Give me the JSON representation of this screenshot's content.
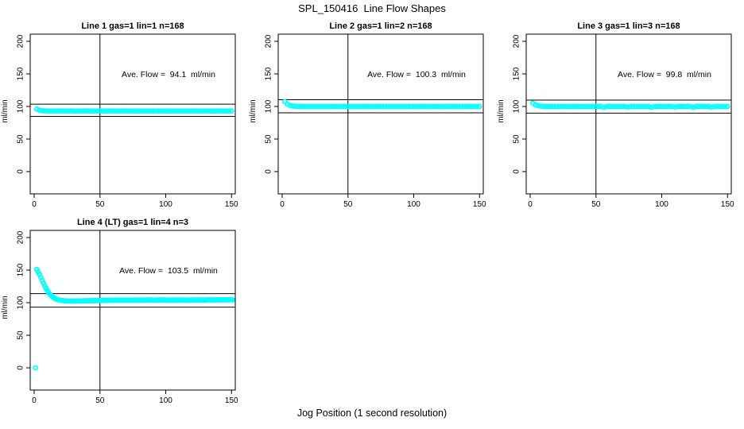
{
  "figure": {
    "background": "#FFFFFF",
    "axis_color": "#000000",
    "marker_color": "#00FFFF"
  },
  "chart_data": {
    "type": "scatter",
    "title": "SPL_150416  Line Flow Shapes",
    "xlabel": "Jog Position (1 second resolution)",
    "ylabel": "ml/min",
    "marker": "open-circle",
    "marker_color": "#00FFFF",
    "xlim": [
      0,
      155
    ],
    "ylim": [
      0,
      200
    ],
    "x_ticks": [
      0,
      50,
      100,
      150
    ],
    "y_ticks": [
      0,
      50,
      100,
      150,
      200
    ],
    "vline_x": 50,
    "grid": false,
    "panels": [
      {
        "title": "Line 1 gas=1 lin=1 n=168",
        "n": 168,
        "ave_flow": 94.1,
        "ave_flow_label": "Ave. Flow =  94.1  ml/min",
        "ref_lines": [
          103.5,
          84.7
        ],
        "series": {
          "x_start": 2,
          "x_step": 2,
          "y": [
            96,
            94.2,
            93.5,
            93.2,
            93,
            93,
            92.9,
            93,
            93.1,
            93,
            92.9,
            93,
            93,
            93.1,
            93,
            92.9,
            93,
            93,
            93.1,
            93,
            93,
            92.9,
            93,
            93,
            93.1,
            93,
            92.9,
            93,
            93,
            93.1,
            93,
            92.9,
            93,
            93,
            93.1,
            93,
            93,
            92.9,
            93,
            93.1,
            93,
            92.9,
            93,
            93,
            93.1,
            93,
            92.9,
            93,
            93,
            93.1,
            93,
            93,
            92.9,
            93,
            93.1,
            93,
            92.9,
            93,
            93,
            93.1,
            93,
            92.9,
            93,
            93,
            93.1,
            93,
            93,
            92.9,
            93,
            93.1,
            93,
            92.9,
            93,
            93,
            93.1
          ]
        }
      },
      {
        "title": "Line 2 gas=1 lin=2 n=168",
        "n": 168,
        "ave_flow": 100.3,
        "ave_flow_label": "Ave. Flow =  100.3  ml/min",
        "ref_lines": [
          110.3,
          90.3
        ],
        "series": {
          "x_start": 2,
          "x_step": 2,
          "y": [
            107.5,
            103.5,
            101.5,
            100.7,
            100.3,
            100.1,
            100,
            100,
            99.9,
            100,
            100.1,
            100,
            99.9,
            100,
            100,
            100.1,
            100,
            99.9,
            100,
            100,
            100.1,
            100,
            100,
            99.9,
            100,
            100,
            100.1,
            100,
            99.9,
            100,
            100,
            100.1,
            100,
            99.9,
            100,
            100,
            100,
            100.1,
            100,
            99.9,
            100,
            100,
            100.1,
            100,
            99.9,
            100,
            100,
            100.1,
            100,
            100,
            99.9,
            100,
            100,
            100.1,
            100,
            99.9,
            100,
            100,
            100.1,
            100,
            99.9,
            100,
            100,
            100.1,
            100,
            100,
            99.9,
            100,
            100,
            100.1,
            100,
            99.9,
            100,
            100,
            100
          ]
        }
      },
      {
        "title": "Line 3 gas=1 lin=3 n=168",
        "n": 168,
        "ave_flow": 99.8,
        "ave_flow_label": "Ave. Flow =  99.8  ml/min",
        "ref_lines": [
          109.8,
          89.8
        ],
        "series": {
          "x_start": 2,
          "x_step": 2,
          "y": [
            105,
            102.5,
            101.2,
            100.5,
            100.2,
            100.1,
            100,
            100,
            99.9,
            100,
            100,
            100.1,
            100,
            99.9,
            100,
            100,
            100.1,
            100,
            100,
            99.9,
            100,
            100,
            100.1,
            100,
            99.9,
            100,
            100,
            98.7,
            100,
            100.1,
            100,
            99.9,
            100,
            100,
            100.1,
            100,
            98.9,
            100,
            100.1,
            100,
            99.9,
            100,
            100,
            100.1,
            100,
            98.8,
            100,
            100.1,
            100,
            99.9,
            100,
            100,
            100.1,
            100,
            98.9,
            100,
            100.1,
            100,
            99.9,
            100,
            100,
            98.8,
            100,
            100.1,
            100,
            100,
            99.9,
            100,
            98.9,
            100,
            100.1,
            100,
            99.9,
            100,
            100
          ]
        }
      },
      {
        "title": "Line 4 (LT) gas=1 lin=4 n=3",
        "n": 3,
        "ave_flow": 103.5,
        "ave_flow_label": "Ave. Flow =  103.5  ml/min",
        "ref_lines": [
          113.9,
          93.2
        ],
        "extra_points": [
          [
            1,
            0
          ]
        ],
        "series": {
          "x_start": 2,
          "x_step": 1,
          "y": [
            151,
            147.5,
            143.5,
            139,
            134.5,
            130,
            126,
            122,
            118.5,
            115.5,
            113,
            110.8,
            109,
            107.5,
            106.3,
            105.4,
            104.7,
            104.1,
            103.7,
            103.4,
            103.1,
            102.9,
            102.8,
            102.7,
            102.6,
            102.6,
            102.5,
            102.5,
            102.5,
            102.6,
            102.5,
            102.7,
            102.6,
            102.8,
            102.7,
            102.9,
            102.8,
            103,
            102.9,
            103.1,
            103,
            102.8,
            103.2,
            103,
            103.3,
            103.1,
            103.4,
            103.2,
            103.5,
            103.3,
            103.6,
            103.4,
            103.7,
            103.5,
            103.8,
            104,
            103.6,
            103.9,
            103.7,
            104,
            103.8,
            104.1,
            103.9,
            103.7,
            104,
            103.8,
            104.2,
            104,
            103.8,
            104.1,
            103.9,
            103.7,
            104,
            103.8,
            104.1,
            103.9,
            104.2,
            104,
            103.8,
            104.1,
            103.9,
            104.3,
            104,
            103.8,
            104.2,
            103.9,
            104.1,
            104.4,
            104,
            103.8,
            104.1,
            103.9,
            104.2,
            104,
            104.3,
            103.9,
            104.1,
            104.4,
            104.2,
            104,
            103.8,
            104.1,
            103.9,
            104.2,
            104,
            104.3,
            104.1,
            103.9,
            104.2,
            104,
            104.3,
            104.1,
            103.9,
            104.2,
            104,
            103.8,
            104.1,
            103.9,
            104.2,
            104,
            104.3,
            104.1,
            104.4,
            104.2,
            104,
            104.3,
            104.1,
            103.9,
            104.2,
            104,
            104.3,
            104.5,
            104.2,
            104,
            104.4,
            104.1,
            104.3,
            104.5,
            104.2,
            104.4,
            104.1,
            104.3,
            104.5,
            104.2,
            104.4,
            104.6,
            104.3,
            104.5,
            104.4,
            104.3
          ]
        }
      }
    ]
  }
}
